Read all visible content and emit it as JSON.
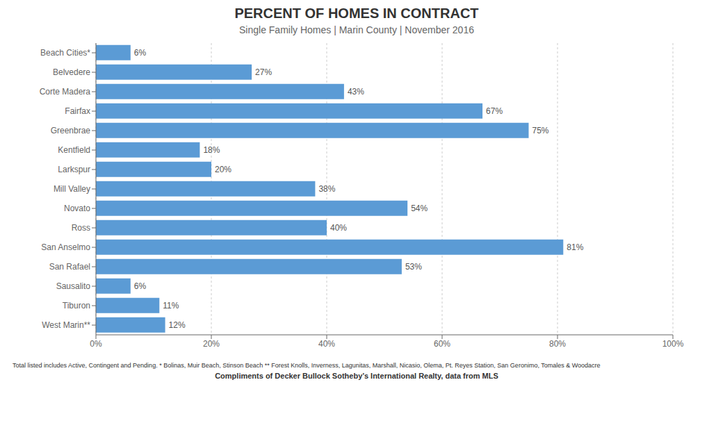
{
  "chart_data": {
    "type": "bar",
    "orientation": "horizontal",
    "title": "PERCENT OF HOMES IN CONTRACT",
    "subtitle": "Single Family Homes | Marin County | November 2016",
    "categories": [
      "Beach Cities*",
      "Belvedere",
      "Corte Madera",
      "Fairfax",
      "Greenbrae",
      "Kentfield",
      "Larkspur",
      "Mill Valley",
      "Novato",
      "Ross",
      "San Anselmo",
      "San Rafael",
      "Sausalito",
      "Tiburon",
      "West Marin**"
    ],
    "values": [
      6,
      27,
      43,
      67,
      75,
      18,
      20,
      38,
      54,
      40,
      81,
      53,
      6,
      11,
      12
    ],
    "value_labels": [
      "6%",
      "27%",
      "43%",
      "67%",
      "75%",
      "18%",
      "20%",
      "38%",
      "54%",
      "40%",
      "81%",
      "53%",
      "6%",
      "11%",
      "12%"
    ],
    "data_labels": true,
    "color": "#5B9BD5",
    "xlim": [
      0,
      100
    ],
    "xticks": [
      {
        "value": 0,
        "label": "0%"
      },
      {
        "value": 20,
        "label": "20%"
      },
      {
        "value": 40,
        "label": "40%"
      },
      {
        "value": 60,
        "label": "60%"
      },
      {
        "value": 80,
        "label": "80%"
      },
      {
        "value": 100,
        "label": "100%"
      }
    ],
    "grid": true,
    "annotations": [
      "Total listed includes Active, Contingent and Pending.   * Bolinas, Muir Beach, Stinson Beach   ** Forest Knolls, Inverness, Lagunitas, Marshall, Nicasio, Olema, Pt. Reyes Station, San Geronimo, Tomales & Woodacre",
      "Compliments of Decker Bullock Sotheby’s International Realty, data from MLS"
    ]
  }
}
